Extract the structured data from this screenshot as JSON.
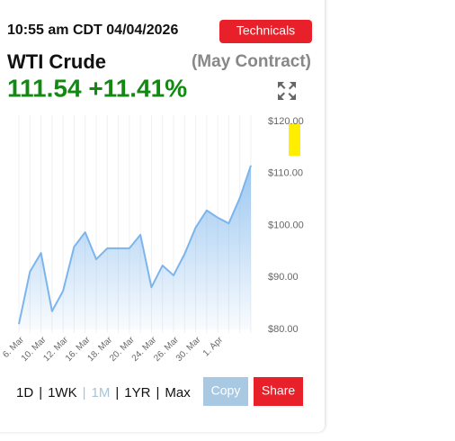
{
  "header": {
    "timestamp": "10:55 am CDT 04/04/2026",
    "button": "Technicals"
  },
  "quote": {
    "name": "WTI Crude",
    "contract": "(May Contract)",
    "price_change": "111.54 +11.41%"
  },
  "chart_data": {
    "type": "area",
    "categories": [
      "6. Mar",
      null,
      "10. Mar",
      null,
      "12. Mar",
      null,
      "16. Mar",
      null,
      "18. Mar",
      null,
      "20. Mar",
      null,
      "24. Mar",
      null,
      "26. Mar",
      null,
      "30. Mar",
      null,
      "1. Apr",
      null,
      null,
      null
    ],
    "series": [
      {
        "name": "WTI Crude",
        "color": "#7cb5ec",
        "values": [
          81.0,
          91.1,
          94.7,
          83.5,
          87.4,
          95.9,
          98.7,
          93.5,
          95.6,
          95.6,
          95.6,
          98.2,
          88.1,
          92.3,
          90.4,
          94.5,
          99.6,
          102.9,
          101.5,
          100.4,
          105.3,
          111.54
        ]
      }
    ],
    "ylim": [
      80,
      120
    ],
    "yticks": [
      {
        "value": 80,
        "label": "$80.00"
      },
      {
        "value": 90,
        "label": "$90.00"
      },
      {
        "value": 100,
        "label": "$100.00"
      },
      {
        "value": 110,
        "label": "$110.00"
      },
      {
        "value": 120,
        "label": "$120.00"
      }
    ],
    "grid": true
  },
  "controls": {
    "ranges": [
      "1D",
      "1WK",
      "1M",
      "1YR",
      "Max"
    ],
    "separator": "|",
    "copy": "Copy",
    "share": "Share"
  }
}
